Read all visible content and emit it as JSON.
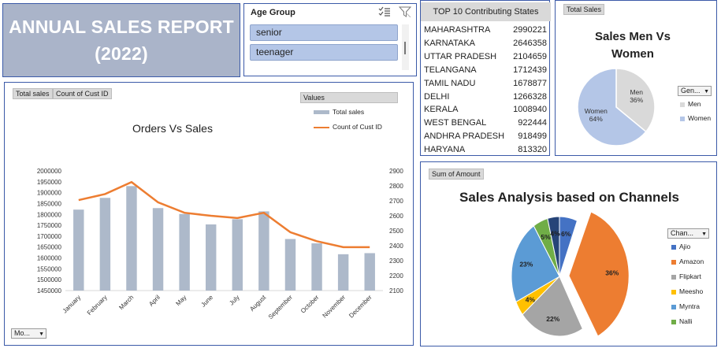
{
  "title": {
    "text": "ANNUAL SALES REPORT\n(2022)"
  },
  "slicer": {
    "header": "Age Group",
    "items": [
      "senior",
      "teenager"
    ]
  },
  "states": {
    "header": "TOP 10 Contributing States",
    "rows": [
      {
        "name": "MAHARASHTRA",
        "value": "2990221"
      },
      {
        "name": "KARNATAKA",
        "value": "2646358"
      },
      {
        "name": "UTTAR PRADESH",
        "value": "2104659"
      },
      {
        "name": "TELANGANA",
        "value": "1712439"
      },
      {
        "name": "TAMIL NADU",
        "value": "1678877"
      },
      {
        "name": "DELHI",
        "value": "1266328"
      },
      {
        "name": "KERALA",
        "value": "1008940"
      },
      {
        "name": "WEST BENGAL",
        "value": "922444"
      },
      {
        "name": "ANDHRA PRADESH",
        "value": "918499"
      },
      {
        "name": "HARYANA",
        "value": "813320"
      }
    ]
  },
  "gender": {
    "pill": "Total Sales",
    "title": "Sales Men Vs\nWomen",
    "dropdown": "Gen...",
    "legend": [
      "Men",
      "Women"
    ],
    "colors": {
      "Men": "#d9d9d9",
      "Women": "#b4c6e7"
    }
  },
  "ovs": {
    "pills": [
      "Total sales",
      "Count of Cust ID"
    ],
    "values_pill": "Values",
    "title": "Orders Vs Sales",
    "legend": [
      "Total sales",
      "Count of Cust ID"
    ],
    "dropdown": "Mo...",
    "colors": {
      "bar": "#adb9ca",
      "line": "#ed7d31"
    }
  },
  "channels": {
    "pill": "Sum of Amount",
    "title": "Sales Analysis based on Channels",
    "dropdown": "Chan...",
    "legend": [
      "Ajio",
      "Amazon",
      "Flipkart",
      "Meesho",
      "Myntra",
      "Nalli"
    ]
  },
  "chart_data": [
    {
      "type": "bar",
      "title": "Orders Vs Sales",
      "categories": [
        "January",
        "February",
        "March",
        "April",
        "May",
        "June",
        "July",
        "August",
        "September",
        "October",
        "November",
        "December"
      ],
      "series": [
        {
          "name": "Total sales",
          "type": "bar",
          "axis": "left",
          "values": [
            1822000,
            1876000,
            1930000,
            1829000,
            1802000,
            1754000,
            1778000,
            1814000,
            1687000,
            1667000,
            1617000,
            1622000
          ]
        },
        {
          "name": "Count of Cust ID",
          "type": "line",
          "axis": "right",
          "values": [
            2705,
            2745,
            2825,
            2690,
            2620,
            2600,
            2585,
            2620,
            2490,
            2430,
            2390,
            2390
          ]
        }
      ],
      "ylim": [
        1450000,
        2000000
      ],
      "yticks": [
        "1450000",
        "1500000",
        "1550000",
        "1600000",
        "1650000",
        "1700000",
        "1750000",
        "1800000",
        "1850000",
        "1900000",
        "1950000",
        "2000000"
      ],
      "y2lim": [
        2100,
        2900
      ],
      "y2ticks": [
        "2100",
        "2200",
        "2300",
        "2400",
        "2500",
        "2600",
        "2700",
        "2800",
        "2900"
      ],
      "grid": false,
      "legend_position": "top-right"
    },
    {
      "type": "pie",
      "title": "Sales Men Vs\nWomen",
      "labels": [
        "Men",
        "Women"
      ],
      "values": [
        36,
        64
      ],
      "data_labels": [
        "Men\n36%",
        "Women\n64%"
      ],
      "colors": [
        "#d9d9d9",
        "#b4c6e7"
      ],
      "legend_position": "right"
    },
    {
      "type": "pie",
      "title": "Sales Analysis based on Channels",
      "labels": [
        "Ajio",
        "Amazon",
        "Flipkart",
        "Meesho",
        "Myntra",
        "Nalli",
        "Others"
      ],
      "values": [
        6,
        36,
        22,
        4,
        23,
        5,
        4
      ],
      "data_labels": [
        "6%",
        "36%",
        "22%",
        "4%",
        "23%",
        "5%",
        "4%"
      ],
      "colors": [
        "#4472c4",
        "#ed7d31",
        "#a5a5a5",
        "#ffc000",
        "#5b9bd5",
        "#70ad47",
        "#264478"
      ],
      "exploded": "Amazon",
      "legend_position": "right"
    }
  ]
}
